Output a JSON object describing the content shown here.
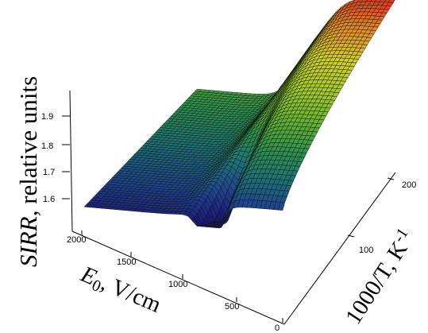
{
  "chart_data": {
    "type": "surface3d",
    "title": "",
    "zlabel": {
      "italic": "SIRR",
      "rest": ", relative units"
    },
    "xlabel": {
      "sym": "E",
      "sub": "0",
      "rest": ", V/cm"
    },
    "ylabel": {
      "text": "1000/T, K",
      "sup": "-1"
    },
    "x_ticks": [
      "2000",
      "1500",
      "1000",
      "500",
      "0"
    ],
    "y_ticks": [
      "100",
      "200"
    ],
    "z_ticks": [
      "1.6",
      "1.7",
      "1.8",
      "1.9"
    ],
    "xlim": [
      0,
      2000
    ],
    "ylim": [
      0,
      220
    ],
    "zlim": [
      1.55,
      1.95
    ],
    "colormap": [
      "#1e1070",
      "#1f3f8f",
      "#1d6e79",
      "#2e8f4e",
      "#66b032",
      "#a4c82a",
      "#d2cd26",
      "#e88a24",
      "#e0301f"
    ],
    "grid_resolution": [
      44,
      52
    ],
    "surface": {
      "description_values": {
        "z_at_low_field_low_inv_temp": 1.57,
        "z_at_low_field_high_inv_temp": 1.7,
        "z_at_high_field_low_inv_temp": 1.75,
        "z_at_high_field_high_inv_temp": 1.95,
        "dip_min": 1.52
      }
    }
  }
}
